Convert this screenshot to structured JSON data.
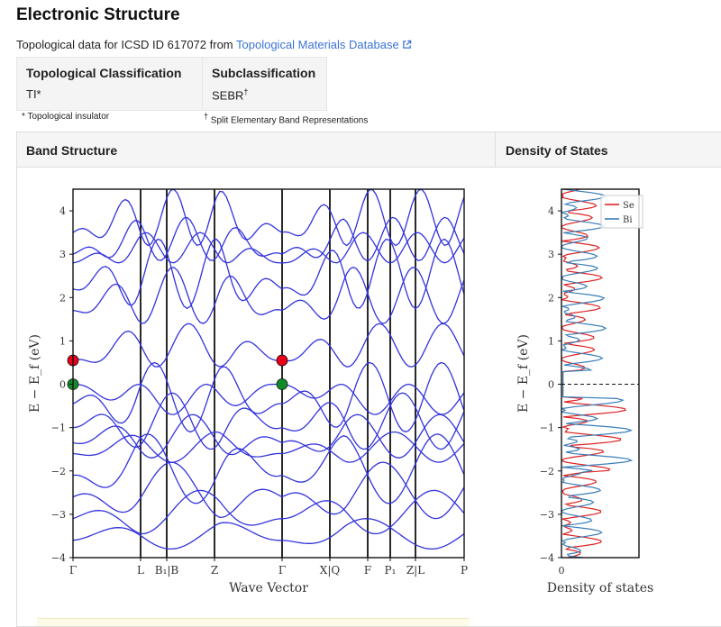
{
  "page": {
    "title": "Electronic Structure",
    "intro_text": "Topological data for ICSD ID 617072 from ",
    "intro_link": "Topological Materials Database",
    "link_icon": "external-link-icon"
  },
  "classification": {
    "topological_header": "Topological Classification",
    "topological_value": "TI*",
    "sub_header": "Subclassification",
    "sub_value": "SEBR",
    "sub_mark": "†",
    "note_topological": "* Topological insulator",
    "note_sub_mark": "†",
    "note_sub": "Split Elementary Band Representations"
  },
  "panels": {
    "band_title": "Band Structure",
    "dos_title": "Density of States"
  },
  "colors": {
    "band": "#3333dd",
    "se": "#dd2222",
    "bi": "#3a7fb8",
    "node_red": "#e8001a",
    "node_green": "#138a2a"
  },
  "chart_data": [
    {
      "type": "line",
      "xlabel": "Wave Vector",
      "ylabel": "E − E_f (eV)",
      "ylim": [
        -4,
        4.5
      ],
      "yticks": [
        "−4",
        "−3",
        "−2",
        "−1",
        "0",
        "1",
        "2",
        "3",
        "4"
      ],
      "ytick_values": [
        -4,
        -3,
        -2,
        -1,
        0,
        1,
        2,
        3,
        4
      ],
      "kpath_labels": [
        "Γ",
        "L",
        "B₁|B",
        "Z",
        "Γ",
        "X|Q",
        "F",
        "P₁",
        "Z|L",
        "P"
      ],
      "nodes": [
        {
          "k": "Γ",
          "energy": 0.55,
          "color": "red"
        },
        {
          "k": "Γ",
          "energy": 0.0,
          "color": "green"
        },
        {
          "k": "Γ",
          "energy": 0.55,
          "color": "red"
        },
        {
          "k": "Γ",
          "energy": 0.0,
          "color": "green"
        }
      ],
      "bands_eV_at_gamma": [
        -3.6,
        -3.1,
        -2.6,
        -2.1,
        -1.6,
        -1.35,
        -1.0,
        -0.45,
        0.0,
        0.55,
        1.7,
        2.2,
        2.8,
        3.0,
        3.5
      ]
    },
    {
      "type": "line",
      "xlabel": "Density of states",
      "ylabel": "E − E_f (eV)",
      "ylim": [
        -4,
        4.5
      ],
      "xticks": [
        "0"
      ],
      "yticks": [
        "−4",
        "−3",
        "−2",
        "−1",
        "0",
        "1",
        "2",
        "3",
        "4"
      ],
      "series": [
        {
          "name": "Se"
        },
        {
          "name": "Bi"
        }
      ],
      "fermi_level": 0,
      "legend": "top-right"
    }
  ]
}
